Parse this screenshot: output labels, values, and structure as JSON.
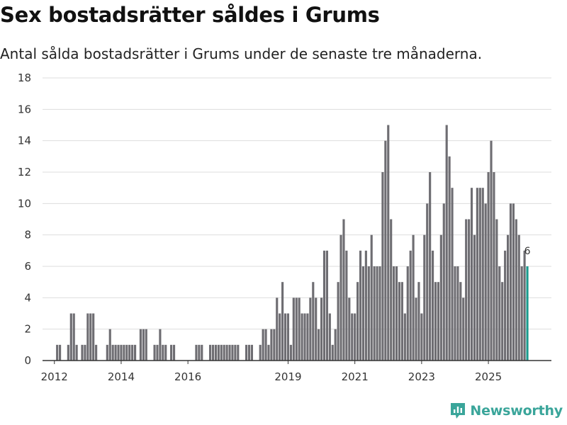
{
  "title": "Sex bostadsrätter såldes i Grums",
  "subtitle": "Antal sålda bostadsrätter i Grums under de senaste tre månaderna.",
  "brand": {
    "name": "Newsworthy",
    "icon": "newsworthy-logo-icon"
  },
  "colors": {
    "bar": "#6e6d72",
    "highlight": "#1a9b8e",
    "grid": "#dddddd",
    "axis": "#333333",
    "brand": "#3aa59a"
  },
  "chart_data": {
    "type": "bar",
    "title": "Sex bostadsrätter såldes i Grums",
    "xlabel": "",
    "ylabel": "",
    "ylim": [
      0,
      18
    ],
    "yticks": [
      0,
      2,
      4,
      6,
      8,
      10,
      12,
      14,
      16,
      18
    ],
    "x_ticks": [
      {
        "label": "2012",
        "index": 3
      },
      {
        "label": "2014",
        "index": 27
      },
      {
        "label": "2016",
        "index": 51
      },
      {
        "label": "2019",
        "index": 87
      },
      {
        "label": "2021",
        "index": 111
      },
      {
        "label": "2023",
        "index": 135
      },
      {
        "label": "2025",
        "index": 159
      }
    ],
    "start": "2011-09",
    "end": "2025-12",
    "values": [
      0,
      0,
      0,
      0,
      1,
      1,
      0,
      0,
      1,
      3,
      3,
      1,
      0,
      1,
      1,
      3,
      3,
      3,
      1,
      0,
      0,
      0,
      1,
      2,
      1,
      1,
      1,
      1,
      1,
      1,
      1,
      1,
      1,
      0,
      2,
      2,
      2,
      0,
      0,
      1,
      1,
      2,
      1,
      1,
      0,
      1,
      1,
      0,
      0,
      0,
      0,
      0,
      0,
      0,
      1,
      1,
      1,
      0,
      0,
      1,
      1,
      1,
      1,
      1,
      1,
      1,
      1,
      1,
      1,
      1,
      0,
      0,
      1,
      1,
      1,
      0,
      0,
      1,
      2,
      2,
      1,
      2,
      2,
      4,
      3,
      5,
      3,
      3,
      1,
      4,
      4,
      4,
      3,
      3,
      3,
      4,
      5,
      4,
      2,
      4,
      7,
      7,
      3,
      1,
      2,
      5,
      8,
      9,
      7,
      4,
      3,
      3,
      5,
      7,
      6,
      7,
      6,
      8,
      6,
      6,
      6,
      12,
      14,
      15,
      9,
      6,
      6,
      5,
      5,
      3,
      6,
      7,
      8,
      4,
      5,
      3,
      8,
      10,
      12,
      7,
      5,
      5,
      8,
      10,
      15,
      13,
      11,
      6,
      6,
      5,
      4,
      9,
      9,
      11,
      8,
      11,
      11,
      11,
      10,
      12,
      14,
      12,
      9,
      6,
      5,
      7,
      8,
      10,
      10,
      9,
      8,
      6,
      7,
      6
    ],
    "highlight_last": true,
    "annotation": "6"
  }
}
